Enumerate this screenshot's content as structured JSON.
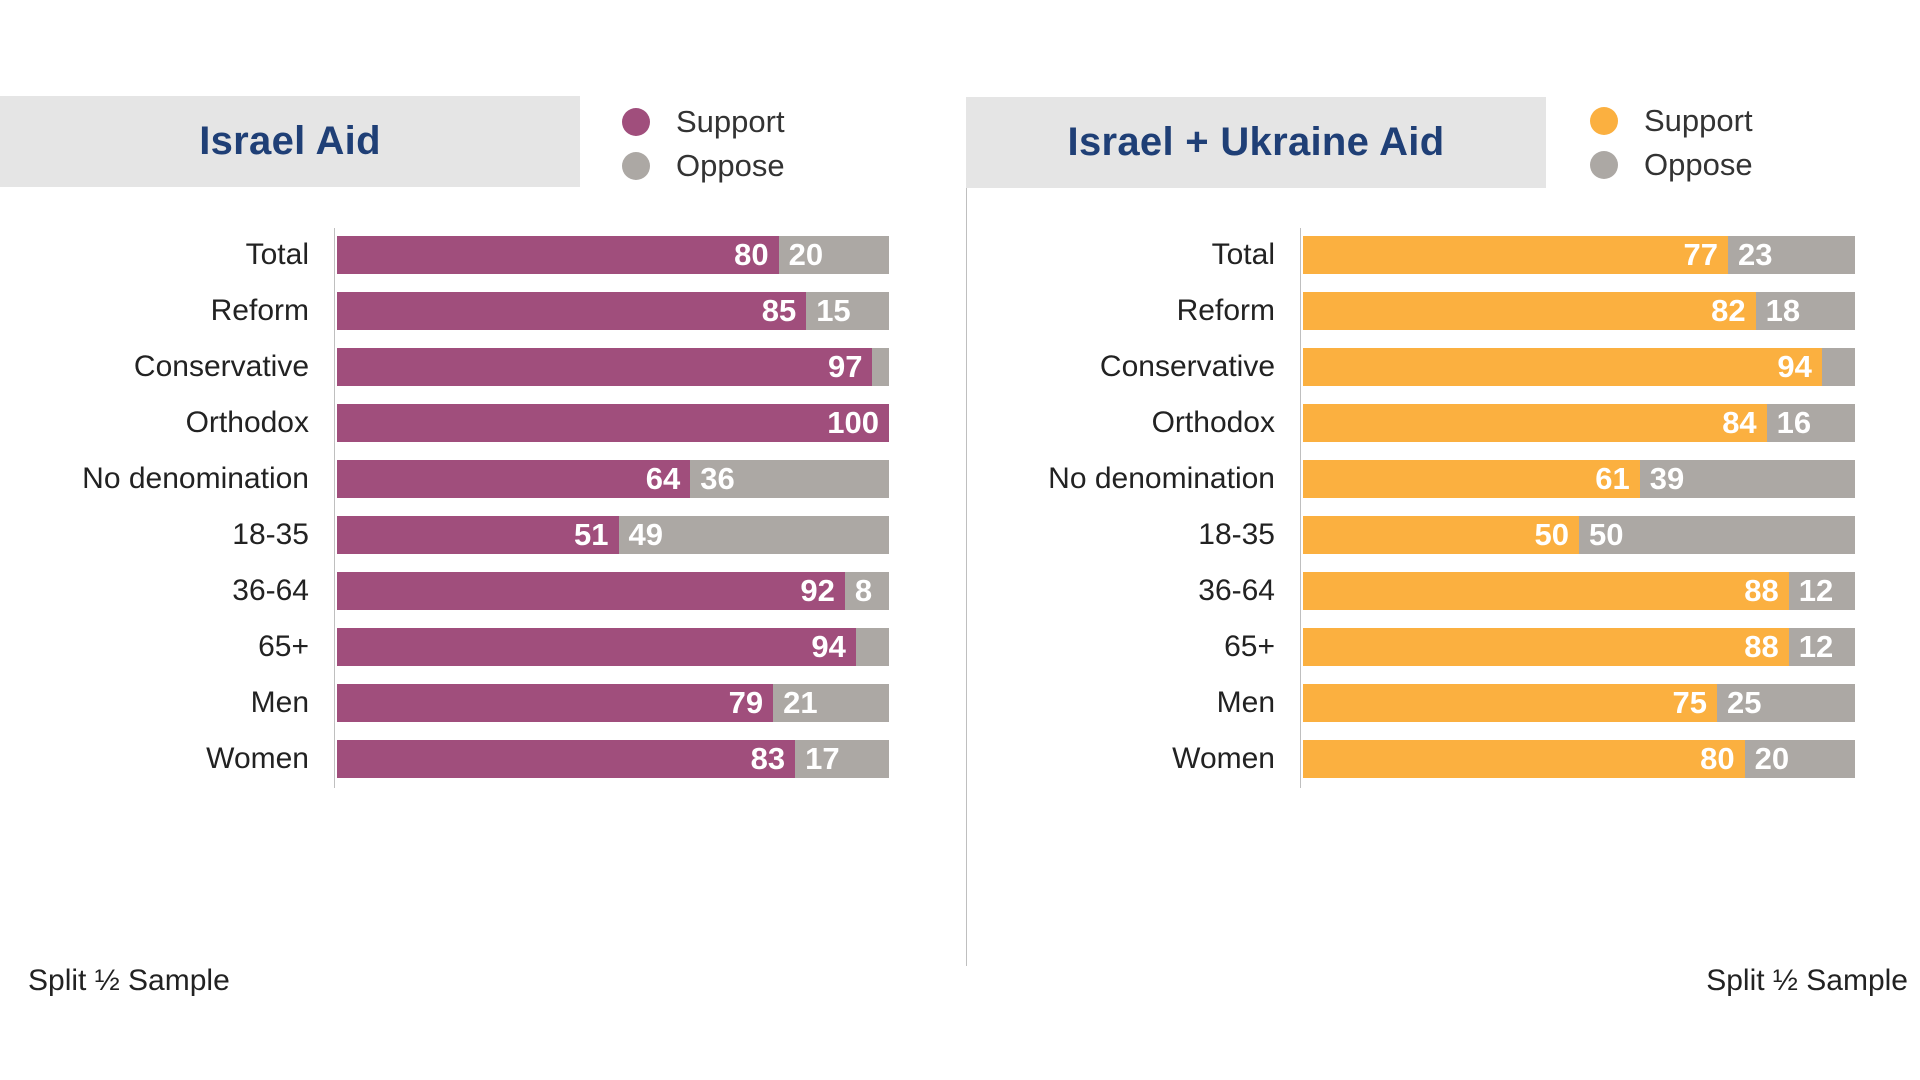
{
  "footnote_left": "Split ½ Sample",
  "footnote_right": "Split ½ Sample",
  "chart_data": [
    {
      "type": "bar",
      "orientation": "horizontal",
      "stacked": true,
      "title": "Israel Aid",
      "categories": [
        "Total",
        "Reform",
        "Conservative",
        "Orthodox",
        "No denomination",
        "18-35",
        "36-64",
        "65+",
        "Men",
        "Women"
      ],
      "groups": [
        [
          "Total"
        ],
        [
          "Reform",
          "Conservative",
          "Orthodox",
          "No denomination"
        ],
        [
          "18-35",
          "36-64",
          "65+"
        ],
        [
          "Men",
          "Women"
        ]
      ],
      "series": [
        {
          "name": "Support",
          "color": "#a04e7c",
          "values": [
            80,
            85,
            97,
            100,
            64,
            51,
            92,
            94,
            79,
            83
          ]
        },
        {
          "name": "Oppose",
          "color": "#aca8a4",
          "values": [
            20,
            15,
            3,
            0,
            36,
            49,
            8,
            6,
            21,
            17
          ]
        }
      ],
      "value_labels": {
        "Support": [
          "80",
          "85",
          "97",
          "100",
          "64",
          "51",
          "92",
          "94",
          "79",
          "83"
        ],
        "Oppose": [
          "20",
          "15",
          "",
          "",
          "36",
          "49",
          "8",
          "",
          "21",
          "17"
        ]
      },
      "xlim": [
        0,
        100
      ],
      "legend": "top-right"
    },
    {
      "type": "bar",
      "orientation": "horizontal",
      "stacked": true,
      "title": "Israel + Ukraine Aid",
      "categories": [
        "Total",
        "Reform",
        "Conservative",
        "Orthodox",
        "No denomination",
        "18-35",
        "36-64",
        "65+",
        "Men",
        "Women"
      ],
      "groups": [
        [
          "Total"
        ],
        [
          "Reform",
          "Conservative",
          "Orthodox",
          "No denomination"
        ],
        [
          "18-35",
          "36-64",
          "65+"
        ],
        [
          "Men",
          "Women"
        ]
      ],
      "series": [
        {
          "name": "Support",
          "color": "#fbb040",
          "values": [
            77,
            82,
            94,
            84,
            61,
            50,
            88,
            88,
            75,
            80
          ]
        },
        {
          "name": "Oppose",
          "color": "#aca8a4",
          "values": [
            23,
            18,
            6,
            16,
            39,
            50,
            12,
            12,
            25,
            20
          ]
        }
      ],
      "value_labels": {
        "Support": [
          "77",
          "82",
          "94",
          "84",
          "61",
          "50",
          "88",
          "88",
          "75",
          "80"
        ],
        "Oppose": [
          "23",
          "18",
          "",
          "16",
          "39",
          "50",
          "12",
          "12",
          "25",
          "20"
        ]
      },
      "xlim": [
        0,
        100
      ],
      "legend": "top-right"
    }
  ]
}
